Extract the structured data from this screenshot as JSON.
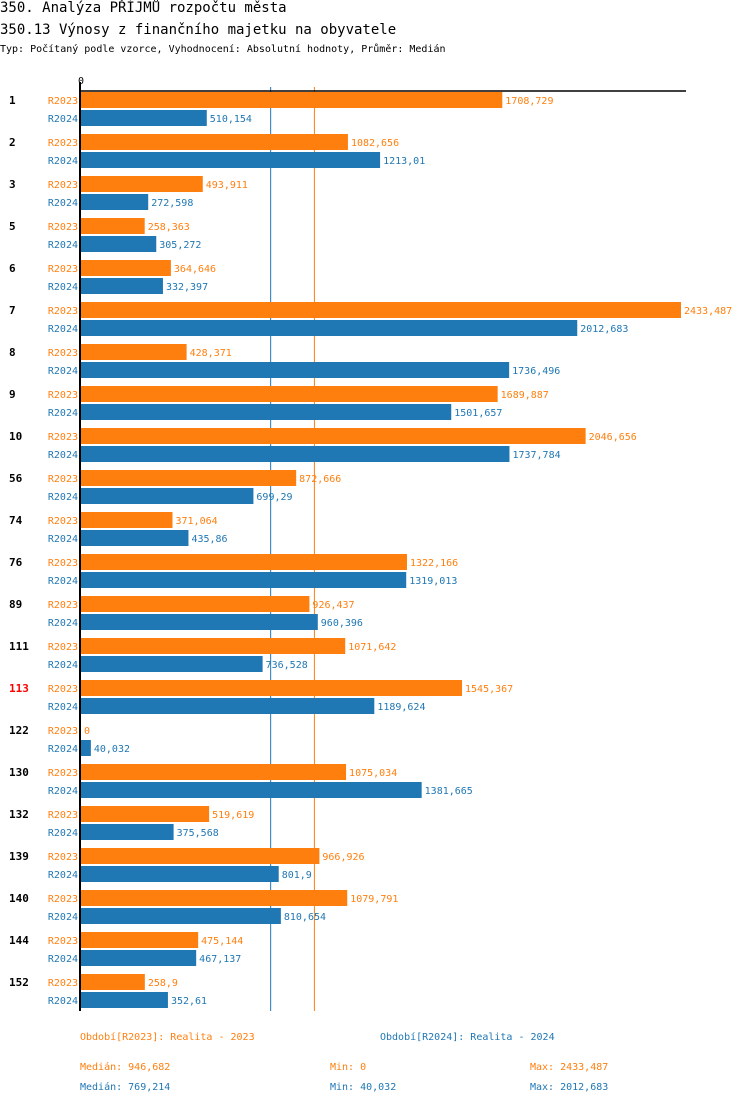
{
  "header": {
    "title": "350. Analýza PŘÍJMŮ rozpočtu města",
    "subtitle": "350.13 Výnosy z finančního majetku na obyvatele",
    "info": "Typ: Počítaný podle vzorce, Vyhodnocení: Absolutní hodnoty, Průměr: Medián"
  },
  "chart_data": {
    "type": "bar",
    "orientation": "horizontal",
    "title": "350.13 Výnosy z finančního majetku na obyvatele",
    "xlabel": "",
    "ylabel": "",
    "x_tick_labels": [
      "0"
    ],
    "xlim": [
      0,
      2433.487
    ],
    "categories": [
      "1",
      "2",
      "3",
      "5",
      "6",
      "7",
      "8",
      "9",
      "10",
      "56",
      "74",
      "76",
      "89",
      "111",
      "113",
      "122",
      "130",
      "132",
      "139",
      "140",
      "144",
      "152"
    ],
    "highlighted_category": "113",
    "series": [
      {
        "name": "R2023",
        "color": "#ff7f0e",
        "values": [
          1708.729,
          1082.656,
          493.911,
          258.363,
          364.646,
          2433.487,
          428.371,
          1689.887,
          2046.656,
          872.666,
          371.064,
          1322.166,
          926.437,
          1071.642,
          1545.367,
          0,
          1075.034,
          519.619,
          966.926,
          1079.791,
          475.144,
          258.9
        ],
        "labels": [
          "1708,729",
          "1082,656",
          "493,911",
          "258,363",
          "364,646",
          "2433,487",
          "428,371",
          "1689,887",
          "2046,656",
          "872,666",
          "371,064",
          "1322,166",
          "926,437",
          "1071,642",
          "1545,367",
          "0",
          "1075,034",
          "519,619",
          "966,926",
          "1079,791",
          "475,144",
          "258,9"
        ]
      },
      {
        "name": "R2024",
        "color": "#1f77b4",
        "values": [
          510.154,
          1213.01,
          272.598,
          305.272,
          332.397,
          2012.683,
          1736.496,
          1501.657,
          1737.784,
          699.29,
          435.86,
          1319.013,
          960.396,
          736.528,
          1189.624,
          40.032,
          1381.665,
          375.568,
          801.9,
          810.654,
          467.137,
          352.61
        ],
        "labels": [
          "510,154",
          "1213,01",
          "272,598",
          "305,272",
          "332,397",
          "2012,683",
          "1736,496",
          "1501,657",
          "1737,784",
          "699,29",
          "435,86",
          "1319,013",
          "960,396",
          "736,528",
          "1189,624",
          "40,032",
          "1381,665",
          "375,568",
          "801,9",
          "810,654",
          "467,137",
          "352,61"
        ]
      }
    ],
    "reference_lines": [
      {
        "series": "R2024",
        "label": "Medián",
        "value": 769.214
      },
      {
        "series": "R2023",
        "label": "Medián",
        "value": 946.682
      }
    ],
    "legend": {
      "placement": "bottom",
      "items": [
        {
          "label": "Období[R2023]: Realita - 2023",
          "color": "#ff7f0e"
        },
        {
          "label": "Období[R2024]: Realita - 2024",
          "color": "#1f77b4"
        }
      ]
    },
    "stats": [
      {
        "median": "Medián: 946,682",
        "min": "Min: 0",
        "max": "Max: 2433,487",
        "color": "#ff7f0e"
      },
      {
        "median": "Medián: 769,214",
        "min": "Min: 40,032",
        "max": "Max: 2012,683",
        "color": "#1f77b4"
      }
    ]
  }
}
